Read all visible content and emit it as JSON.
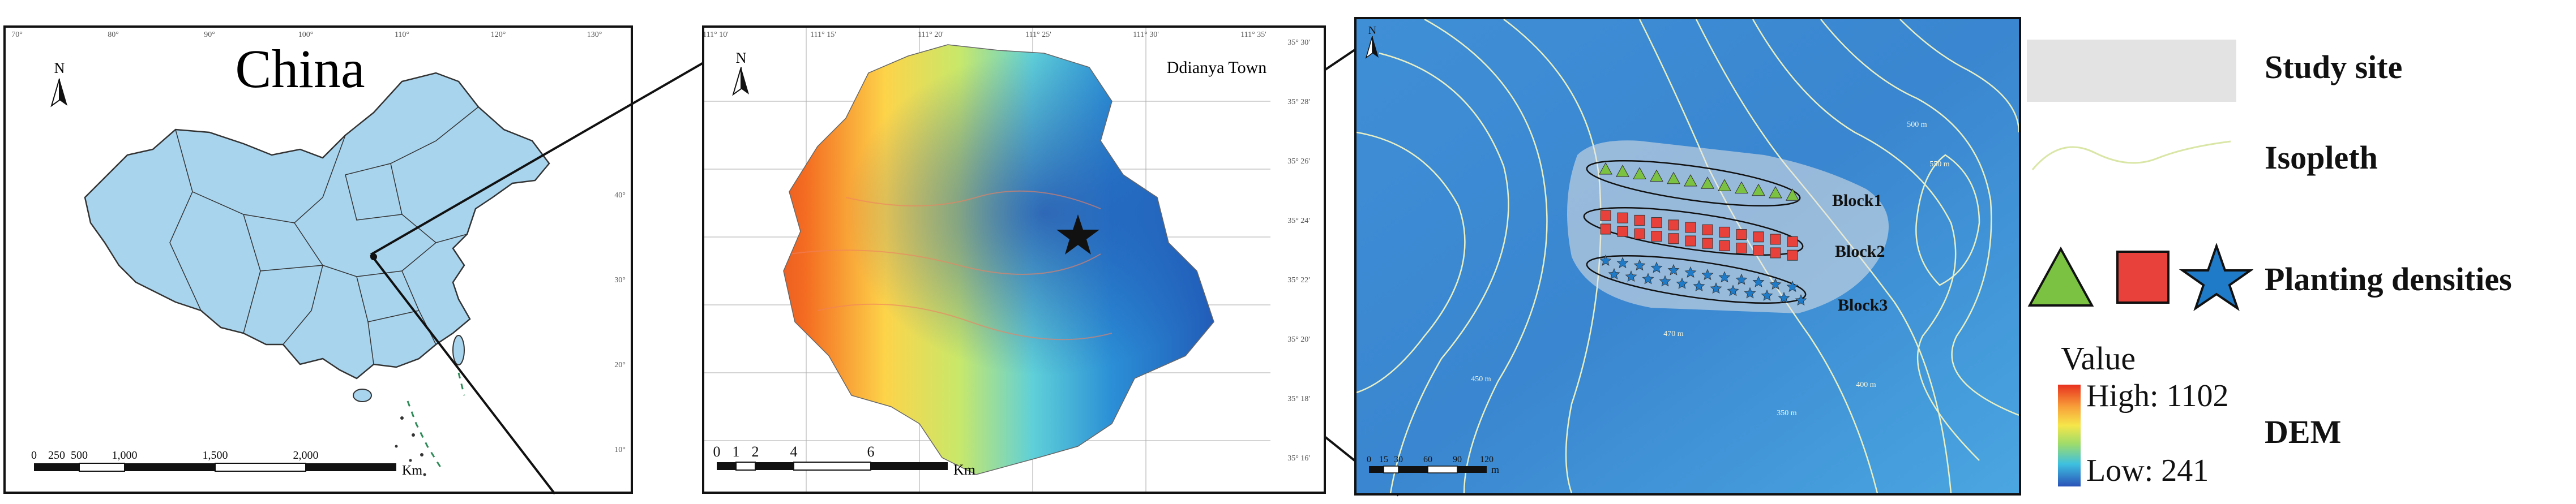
{
  "china_panel": {
    "title": "China",
    "north": "N",
    "lon_ticks": [
      "70°",
      "80°",
      "90°",
      "100°",
      "110°",
      "120°",
      "130°"
    ],
    "lat_ticks": [
      "40°",
      "30°",
      "20°",
      "10°"
    ],
    "scale_labels": [
      "0",
      "250",
      "500",
      "1,000",
      "1,500",
      "2,000"
    ],
    "scale_unit": "Km",
    "colors": {
      "land": "#a8d4ee",
      "border": "#333333"
    }
  },
  "town_panel": {
    "title": "Ddianya Town",
    "north": "N",
    "lon_ticks": [
      "111° 10'",
      "111° 15'",
      "111° 20'",
      "111° 25'",
      "111° 30'",
      "111° 35'"
    ],
    "lat_ticks": [
      "35° 30'",
      "35° 28'",
      "35° 26'",
      "35° 24'",
      "35° 22'",
      "35° 20'",
      "35° 18'",
      "35° 16'"
    ],
    "scale_labels": [
      "0",
      "1",
      "2",
      "4",
      "6"
    ],
    "scale_unit": "Km",
    "marker": "star-icon"
  },
  "site_panel": {
    "north": "N",
    "blocks": [
      "Block1",
      "Block2",
      "Block3"
    ],
    "scale_labels": [
      "0",
      "15",
      "30",
      "60",
      "90",
      "120"
    ],
    "scale_unit": "m",
    "contour_labels": [
      "450 m",
      "500 m",
      "550 m",
      "400 m",
      "350 m",
      "470 m"
    ],
    "colors": {
      "background": "#3a8fd8",
      "isopleth": "#e8efc4",
      "study_site": "#e3e3e3"
    }
  },
  "legend": {
    "study_site": "Study site",
    "isopleth": "Isopleth",
    "planting_densities": "Planting densities",
    "value_title": "Value",
    "high": "High: 1102",
    "low": "Low: 241",
    "dem": "DEM",
    "symbols": {
      "triangle_color": "#7cc242",
      "square_color": "#e8403a",
      "star_color": "#1f7ac7"
    }
  }
}
